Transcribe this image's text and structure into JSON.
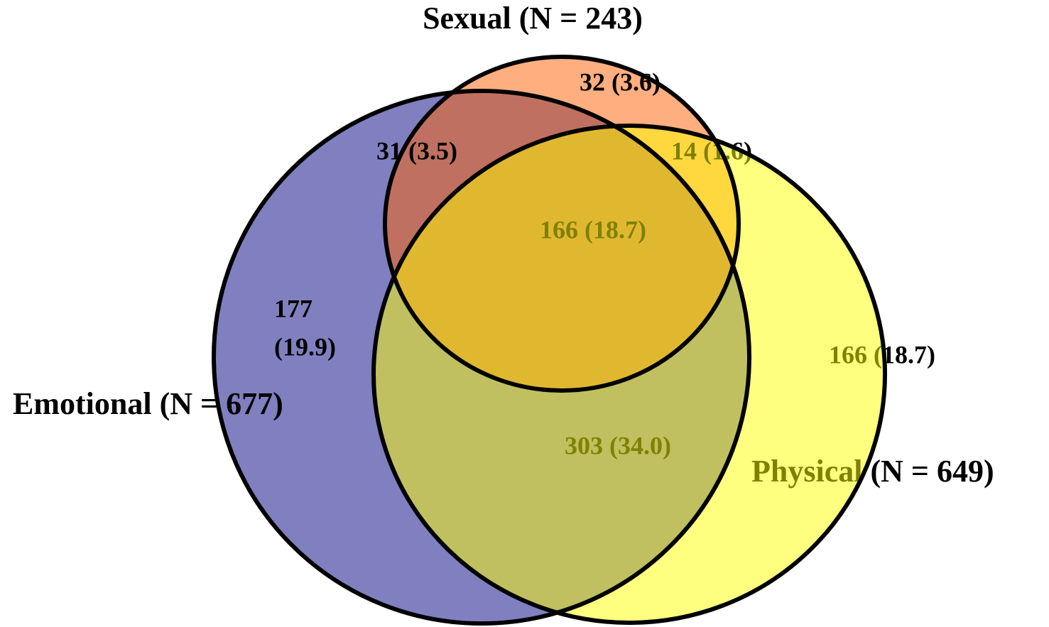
{
  "sets": [
    {
      "label": "Emotional (N = 677)"
    },
    {
      "label": "Sexual (N = 243)"
    },
    {
      "label": "Physical (N = 649)"
    }
  ],
  "regions": [
    {
      "label": "32 (3.6)"
    },
    {
      "label": "31 (3.5)"
    },
    {
      "label": "14 (1.6)"
    },
    {
      "label": "166 (18.7)"
    },
    {
      "lines": [
        "177",
        "(19.9)"
      ]
    },
    {
      "label": "166 (18.7)"
    },
    {
      "label": "303 (34.0)"
    }
  ]
}
